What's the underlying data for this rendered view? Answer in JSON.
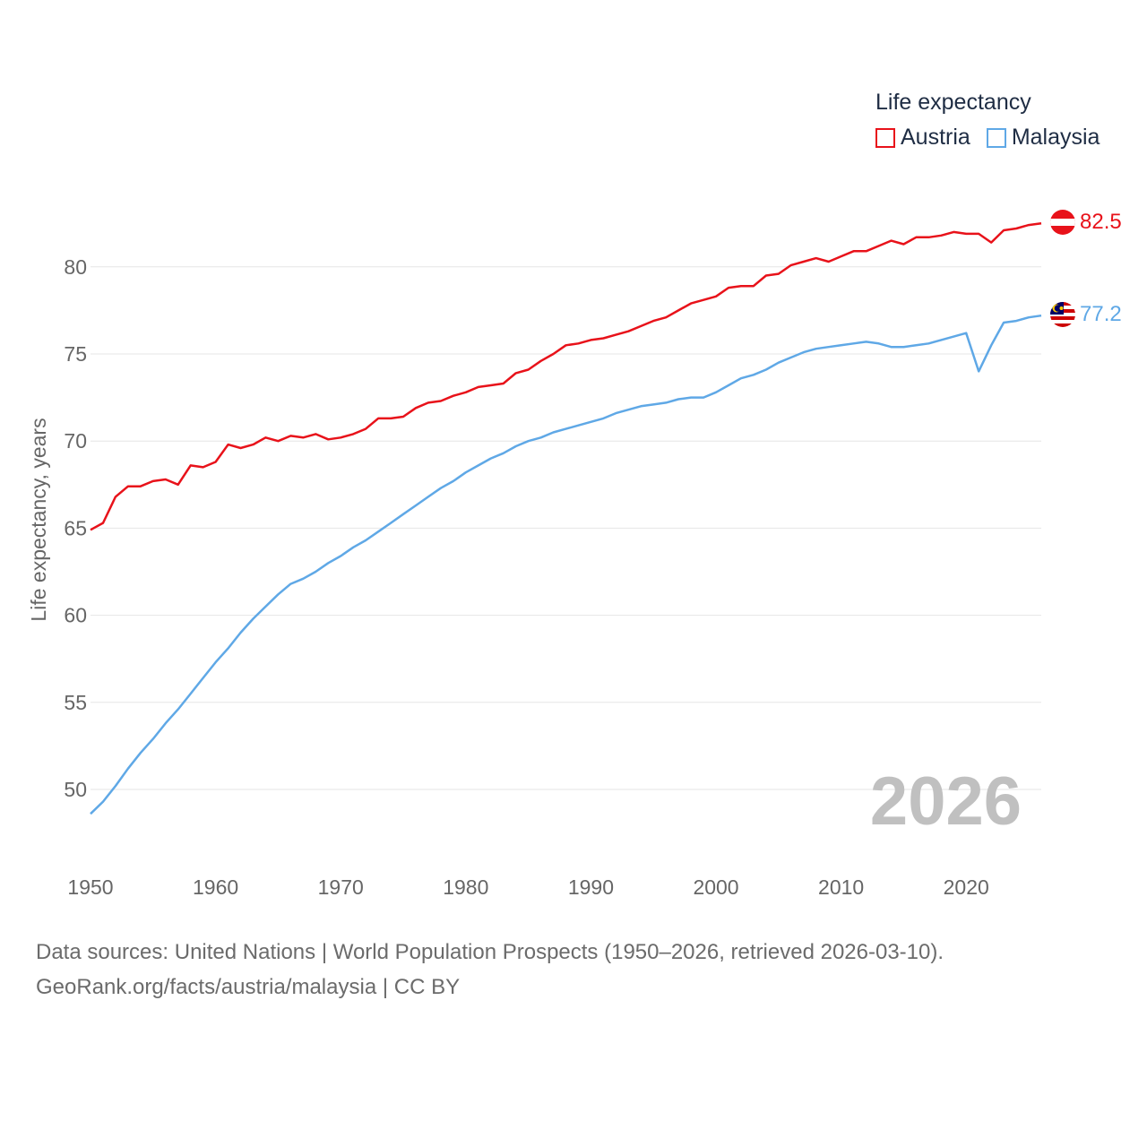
{
  "legend": {
    "title": "Life expectancy",
    "items": [
      "Austria",
      "Malaysia"
    ]
  },
  "colors": {
    "austria": "#e8121a",
    "malaysia": "#5fa8e6",
    "grid": "#e6e6e6",
    "text": "#666666",
    "year": "#c0c0c0"
  },
  "footer": {
    "line1": "Data sources: United Nations | World Population Prospects (1950–2026, retrieved 2026-03-10).",
    "line2": "GeoRank.org/facts/austria/malaysia | CC BY"
  },
  "chart_data": {
    "type": "line",
    "title": "Life expectancy",
    "xlabel": "",
    "ylabel": "Life expectancy, years",
    "xlim": [
      1950,
      2026
    ],
    "ylim": [
      45.5,
      85
    ],
    "yticks": [
      50,
      55,
      60,
      65,
      70,
      75,
      80
    ],
    "xticks": [
      1950,
      1960,
      1970,
      1980,
      1990,
      2000,
      2010,
      2020
    ],
    "watermark_year": "2026",
    "x": [
      1950,
      1951,
      1952,
      1953,
      1954,
      1955,
      1956,
      1957,
      1958,
      1959,
      1960,
      1961,
      1962,
      1963,
      1964,
      1965,
      1966,
      1967,
      1968,
      1969,
      1970,
      1971,
      1972,
      1973,
      1974,
      1975,
      1976,
      1977,
      1978,
      1979,
      1980,
      1981,
      1982,
      1983,
      1984,
      1985,
      1986,
      1987,
      1988,
      1989,
      1990,
      1991,
      1992,
      1993,
      1994,
      1995,
      1996,
      1997,
      1998,
      1999,
      2000,
      2001,
      2002,
      2003,
      2004,
      2005,
      2006,
      2007,
      2008,
      2009,
      2010,
      2011,
      2012,
      2013,
      2014,
      2015,
      2016,
      2017,
      2018,
      2019,
      2020,
      2021,
      2022,
      2023,
      2024,
      2025,
      2026
    ],
    "series": [
      {
        "name": "Austria",
        "color": "#e8121a",
        "end_label": "82.5",
        "values": [
          64.9,
          65.3,
          66.8,
          67.4,
          67.4,
          67.7,
          67.8,
          67.5,
          68.6,
          68.5,
          68.8,
          69.8,
          69.6,
          69.8,
          70.2,
          70.0,
          70.3,
          70.2,
          70.4,
          70.1,
          70.2,
          70.4,
          70.7,
          71.3,
          71.3,
          71.4,
          71.9,
          72.2,
          72.3,
          72.6,
          72.8,
          73.1,
          73.2,
          73.3,
          73.9,
          74.1,
          74.6,
          75.0,
          75.5,
          75.6,
          75.8,
          75.9,
          76.1,
          76.3,
          76.6,
          76.9,
          77.1,
          77.5,
          77.9,
          78.1,
          78.3,
          78.8,
          78.9,
          78.9,
          79.5,
          79.6,
          80.1,
          80.3,
          80.5,
          80.3,
          80.6,
          80.9,
          80.9,
          81.2,
          81.5,
          81.3,
          81.7,
          81.7,
          81.8,
          82.0,
          81.9,
          81.9,
          81.4,
          82.1,
          82.2,
          82.4,
          82.5
        ]
      },
      {
        "name": "Malaysia",
        "color": "#5fa8e6",
        "end_label": "77.2",
        "values": [
          48.6,
          49.3,
          50.2,
          51.2,
          52.1,
          52.9,
          53.8,
          54.6,
          55.5,
          56.4,
          57.3,
          58.1,
          59.0,
          59.8,
          60.5,
          61.2,
          61.8,
          62.1,
          62.5,
          63.0,
          63.4,
          63.9,
          64.3,
          64.8,
          65.3,
          65.8,
          66.3,
          66.8,
          67.3,
          67.7,
          68.2,
          68.6,
          69.0,
          69.3,
          69.7,
          70.0,
          70.2,
          70.5,
          70.7,
          70.9,
          71.1,
          71.3,
          71.6,
          71.8,
          72.0,
          72.1,
          72.2,
          72.4,
          72.5,
          72.5,
          72.8,
          73.2,
          73.6,
          73.8,
          74.1,
          74.5,
          74.8,
          75.1,
          75.3,
          75.4,
          75.5,
          75.6,
          75.7,
          75.6,
          75.4,
          75.4,
          75.5,
          75.6,
          75.8,
          76.0,
          76.2,
          74.0,
          75.5,
          76.8,
          76.9,
          77.1,
          77.2
        ]
      }
    ]
  }
}
